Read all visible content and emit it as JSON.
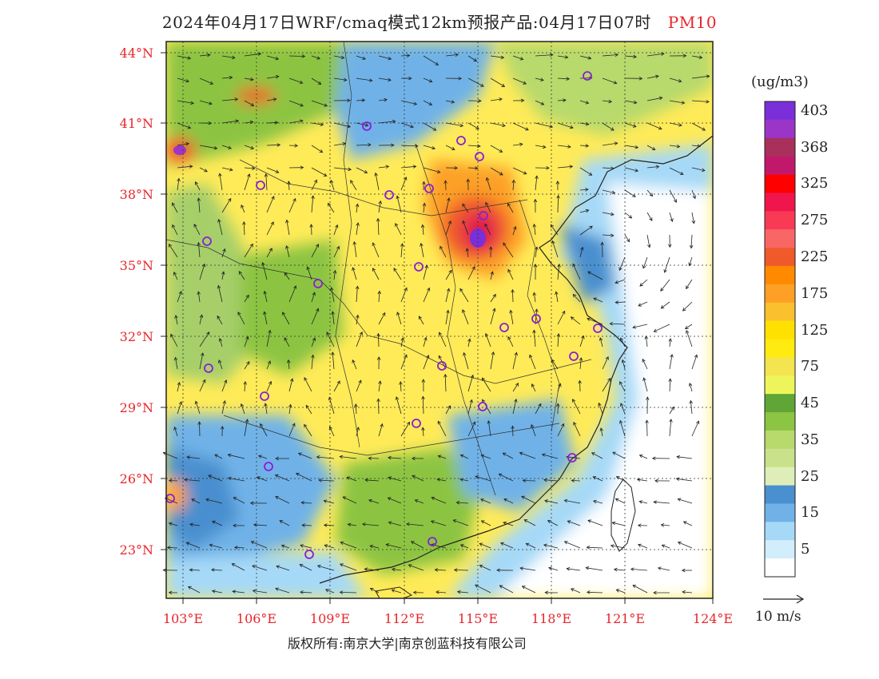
{
  "header": {
    "title": "2024年04月17日WRF/cmaq模式12km预报产品:04月17日07时",
    "variable": "PM10"
  },
  "map": {
    "lat_labels": [
      "44°N",
      "41°N",
      "38°N",
      "35°N",
      "32°N",
      "29°N",
      "26°N",
      "23°N"
    ],
    "lon_labels": [
      "103°E",
      "106°E",
      "109°E",
      "112°E",
      "115°E",
      "118°E",
      "121°E",
      "124°E"
    ],
    "label_color": "#e8252a",
    "sea_color": "#ffffff",
    "coast_color": "#222222"
  },
  "legend": {
    "unit": "(ug/m3)",
    "levels": [
      {
        "label": "403",
        "color": "#7a2fd8"
      },
      {
        "label": "",
        "color": "#9b35c8"
      },
      {
        "label": "368",
        "color": "#a8305a"
      },
      {
        "label": "",
        "color": "#c2186b"
      },
      {
        "label": "325",
        "color": "#ff0000"
      },
      {
        "label": "",
        "color": "#f0154a"
      },
      {
        "label": "275",
        "color": "#f83a55"
      },
      {
        "label": "",
        "color": "#fa6666"
      },
      {
        "label": "225",
        "color": "#f05a2a"
      },
      {
        "label": "",
        "color": "#ff8a00"
      },
      {
        "label": "175",
        "color": "#fda025"
      },
      {
        "label": "",
        "color": "#fbc02d"
      },
      {
        "label": "125",
        "color": "#ffe000"
      },
      {
        "label": "",
        "color": "#ffeb10"
      },
      {
        "label": "75",
        "color": "#f4e450"
      },
      {
        "label": "",
        "color": "#eef55a"
      },
      {
        "label": "45",
        "color": "#60a636"
      },
      {
        "label": "",
        "color": "#8cc443"
      },
      {
        "label": "35",
        "color": "#b8d96c"
      },
      {
        "label": "",
        "color": "#c9e18a"
      },
      {
        "label": "25",
        "color": "#dfeeb8"
      },
      {
        "label": "",
        "color": "#4a8fcf"
      },
      {
        "label": "15",
        "color": "#70b2e8"
      },
      {
        "label": "",
        "color": "#a6d9f7"
      },
      {
        "label": "5",
        "color": "#d2edfb"
      },
      {
        "label": "",
        "color": "#ffffff"
      }
    ]
  },
  "wind_scale": {
    "label": "10 m/s"
  },
  "footer": {
    "copyright": "版权所有:南京大学|南京创蓝科技有限公司"
  }
}
